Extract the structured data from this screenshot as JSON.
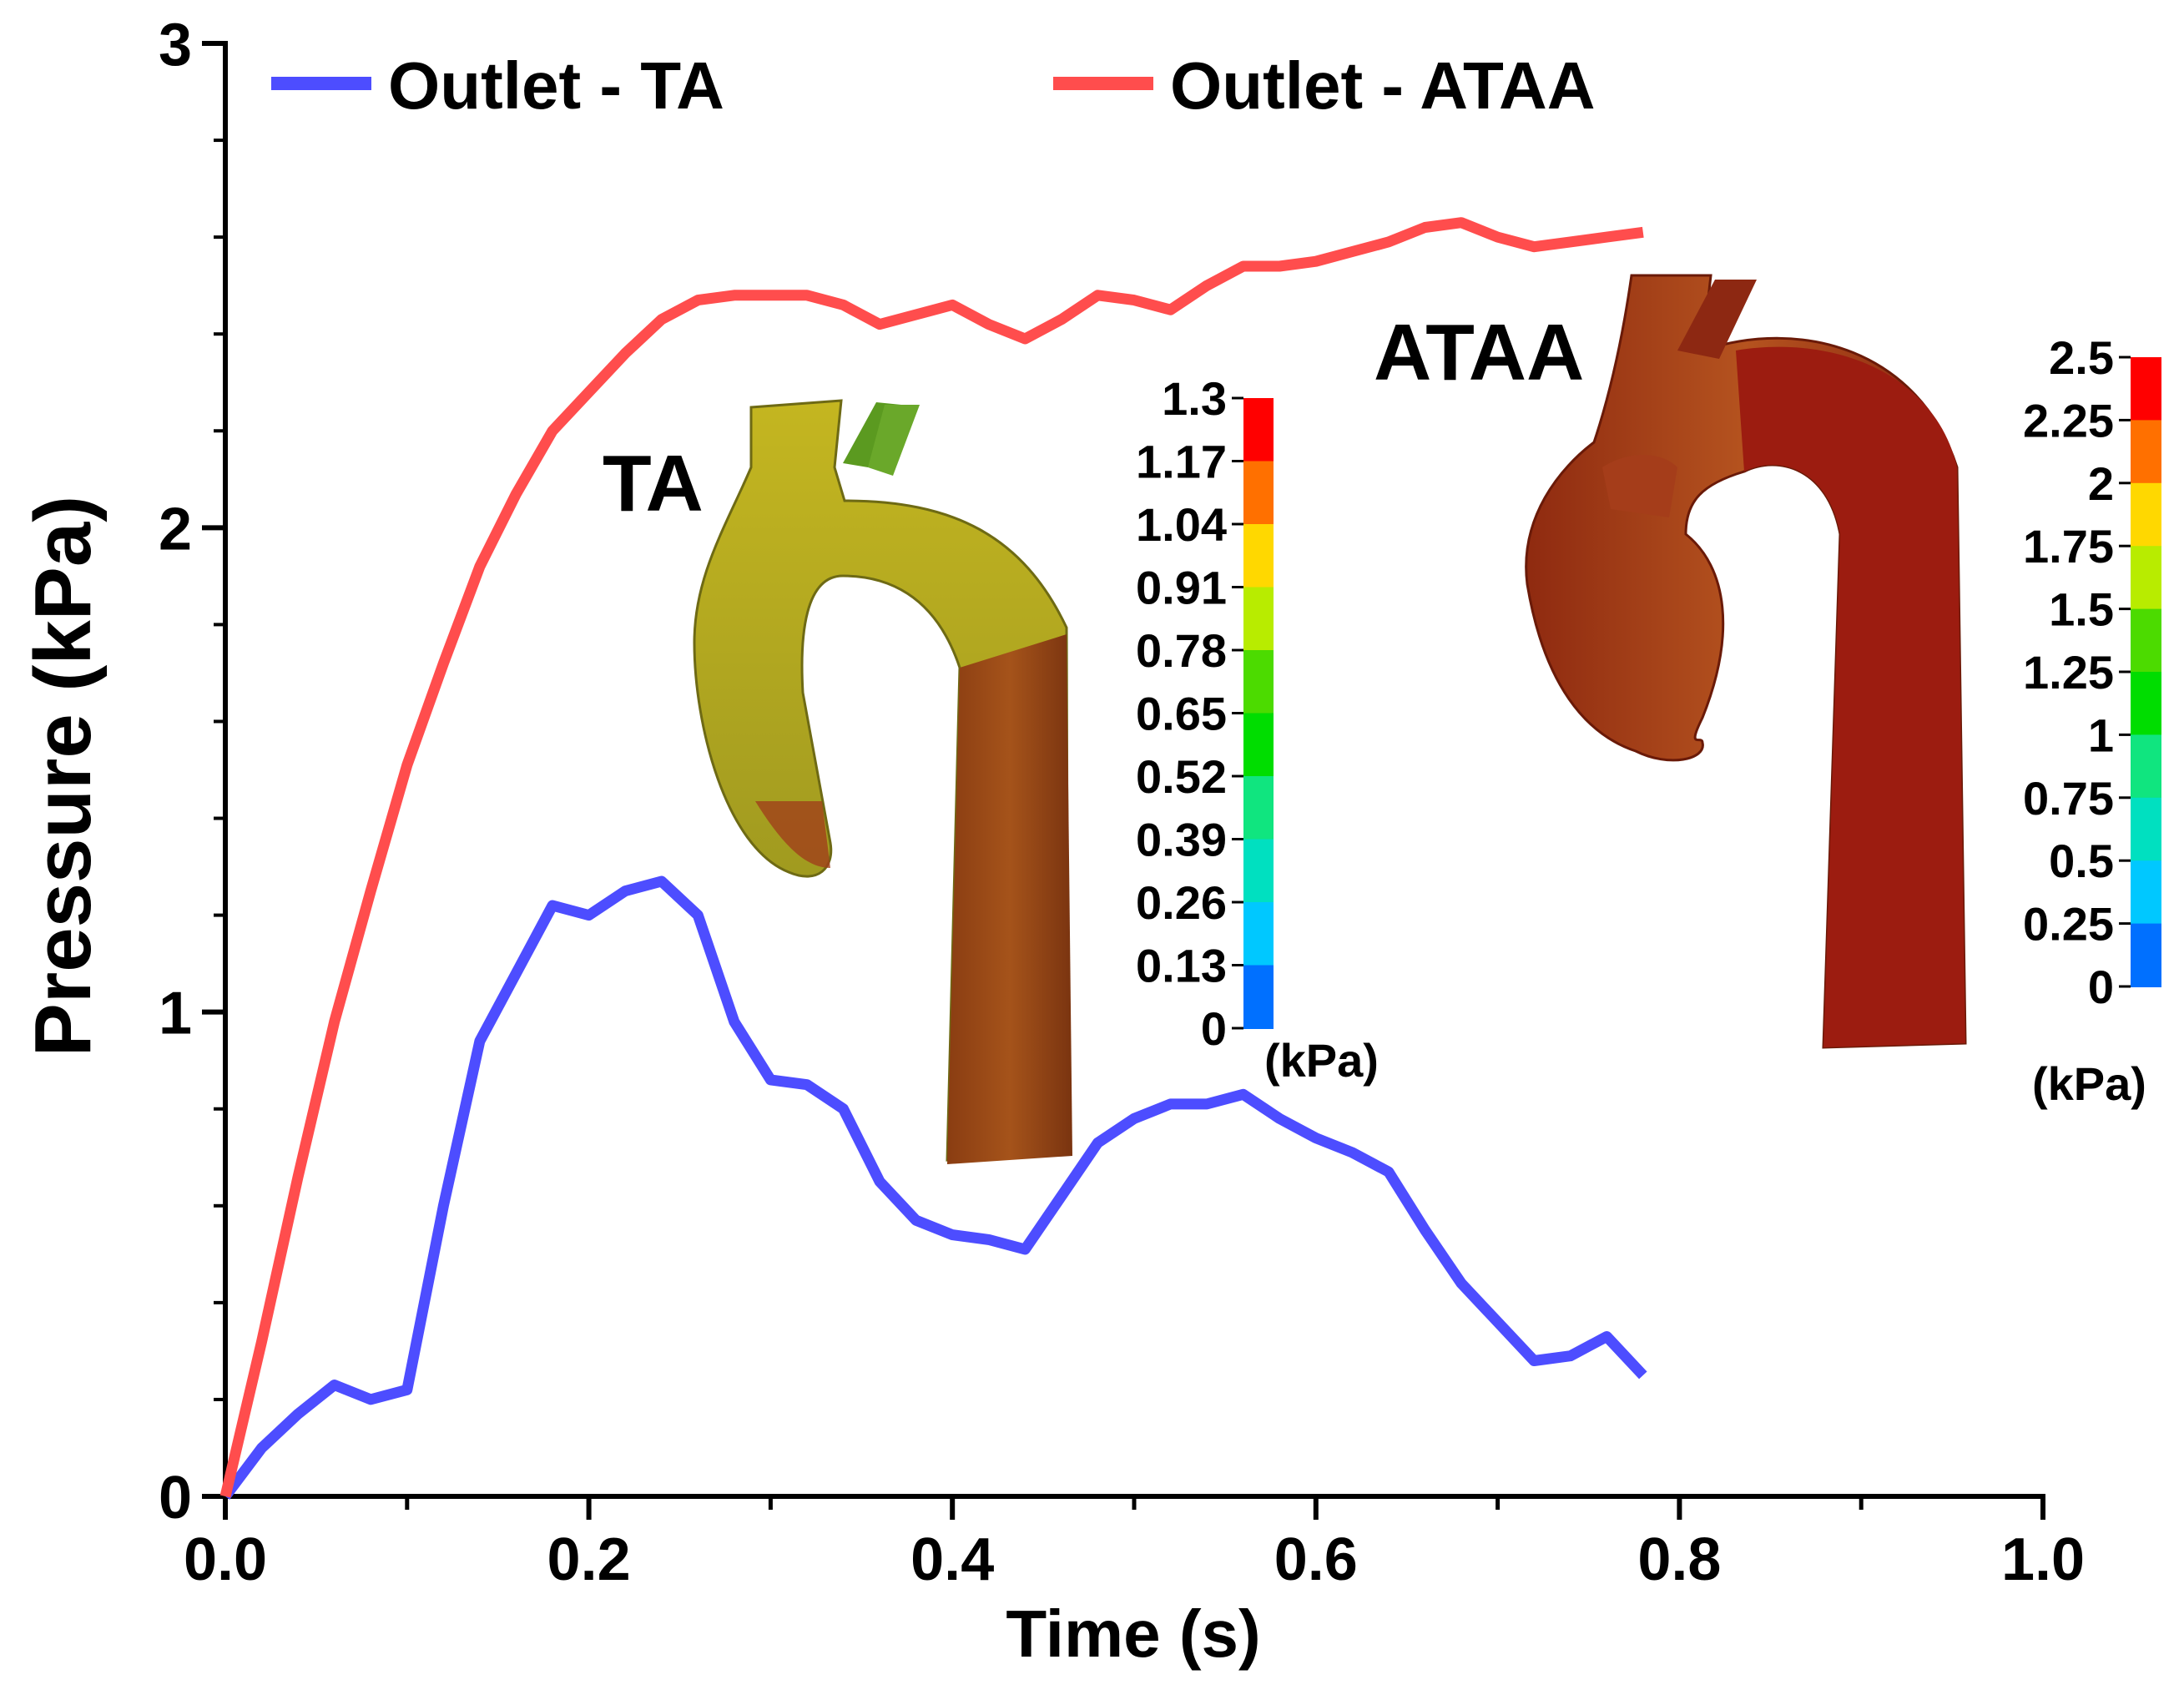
{
  "chart_data": {
    "type": "line",
    "title": "",
    "xlabel": "Time (s)",
    "ylabel": "Pressure (kPa)",
    "xlim": [
      0.0,
      1.0
    ],
    "ylim": [
      0,
      3
    ],
    "x_ticks": [
      0.0,
      0.2,
      0.4,
      0.6,
      0.8,
      1.0
    ],
    "x_tick_labels": [
      "0.0",
      "0.2",
      "0.4",
      "0.6",
      "0.8",
      "1.0"
    ],
    "y_ticks": [
      0,
      1,
      2,
      3
    ],
    "y_tick_labels": [
      "0",
      "1",
      "2",
      "3"
    ],
    "grid": false,
    "legend_position": "top",
    "x": [
      0.0,
      0.02,
      0.04,
      0.06,
      0.08,
      0.1,
      0.12,
      0.14,
      0.16,
      0.18,
      0.2,
      0.22,
      0.24,
      0.26,
      0.28,
      0.3,
      0.32,
      0.34,
      0.36,
      0.38,
      0.4,
      0.42,
      0.44,
      0.46,
      0.48,
      0.5,
      0.52,
      0.54,
      0.56,
      0.58,
      0.6,
      0.62,
      0.64,
      0.66,
      0.68,
      0.7,
      0.72,
      0.74,
      0.76,
      0.78
    ],
    "series": [
      {
        "name": "Outlet - TA",
        "color": "#4d4dff",
        "values": [
          0.0,
          0.1,
          0.17,
          0.23,
          0.2,
          0.22,
          0.6,
          0.94,
          1.08,
          1.22,
          1.2,
          1.25,
          1.27,
          1.2,
          0.98,
          0.86,
          0.85,
          0.8,
          0.65,
          0.57,
          0.54,
          0.53,
          0.51,
          0.62,
          0.73,
          0.78,
          0.81,
          0.81,
          0.83,
          0.78,
          0.74,
          0.71,
          0.67,
          0.55,
          0.44,
          0.36,
          0.28,
          0.29,
          0.33,
          0.25
        ]
      },
      {
        "name": "Outlet - ATAA",
        "color": "#ff4d4d",
        "values": [
          0.0,
          0.32,
          0.66,
          0.98,
          1.25,
          1.51,
          1.72,
          1.92,
          2.07,
          2.2,
          2.28,
          2.36,
          2.43,
          2.47,
          2.48,
          2.48,
          2.48,
          2.46,
          2.42,
          2.44,
          2.46,
          2.42,
          2.39,
          2.43,
          2.48,
          2.47,
          2.45,
          2.5,
          2.54,
          2.54,
          2.55,
          2.57,
          2.59,
          2.62,
          2.63,
          2.6,
          2.58,
          2.59,
          2.6,
          2.61
        ]
      }
    ],
    "annotations": [
      {
        "text": "TA",
        "color": "#4d4dff"
      },
      {
        "text": "ATAA",
        "color": "#ff4d4d"
      }
    ],
    "colorbars": [
      {
        "name": "TA",
        "unit": "(kPa)",
        "labels": [
          "1.3",
          "1.17",
          "1.04",
          "0.91",
          "0.78",
          "0.65",
          "0.52",
          "0.39",
          "0.26",
          "0.13",
          "0"
        ],
        "colors": [
          "#ff0000",
          "#ff7000",
          "#ffd800",
          "#b8ec00",
          "#4cdb00",
          "#00dd00",
          "#10e57f",
          "#00e0c0",
          "#00c8ff",
          "#0070ff",
          "#1010ff"
        ]
      },
      {
        "name": "ATAA",
        "unit": "(kPa)",
        "labels": [
          "2.5",
          "2.25",
          "2",
          "1.75",
          "1.5",
          "1.25",
          "1",
          "0.75",
          "0.5",
          "0.25",
          "0"
        ],
        "colors": [
          "#ff0000",
          "#ff7000",
          "#ffd800",
          "#b8ec00",
          "#4cdb00",
          "#00dd00",
          "#10e57f",
          "#00e0c0",
          "#00c8ff",
          "#0070ff",
          "#1010ff"
        ]
      }
    ]
  }
}
